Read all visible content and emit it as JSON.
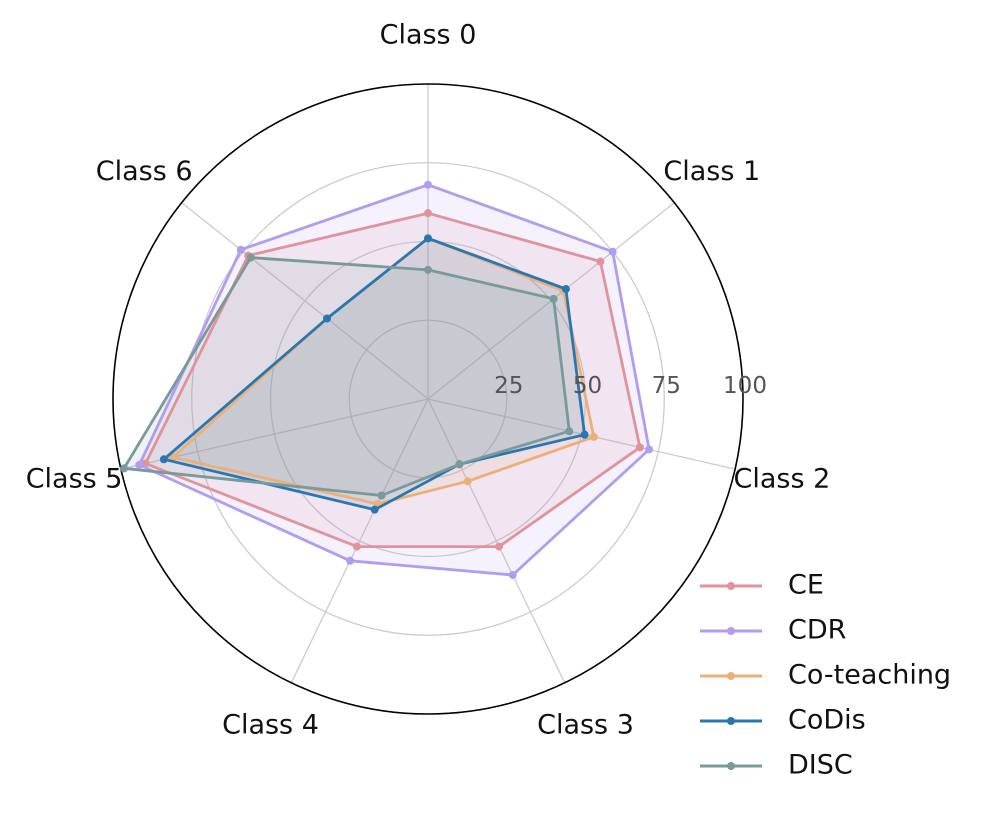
{
  "chart_data": {
    "type": "radar",
    "categories": [
      "Class 0",
      "Class 1",
      "Class 2",
      "Class 3",
      "Class 4",
      "Class 5",
      "Class 6"
    ],
    "rlim": [
      0,
      100
    ],
    "rticks": [
      25,
      50,
      75,
      100
    ],
    "rtick_labels": [
      "25",
      "50",
      "75",
      "100"
    ],
    "grid": true,
    "legend_position": "bottom-right",
    "series": [
      {
        "name": "CE",
        "color": "#e0939a",
        "values": [
          59,
          70,
          69,
          52,
          52,
          92,
          73
        ]
      },
      {
        "name": "CDR",
        "color": "#b09df0",
        "values": [
          68,
          75,
          72,
          62,
          57,
          94,
          76
        ]
      },
      {
        "name": "Co-teaching",
        "color": "#ebb07a",
        "values": [
          51,
          55,
          54,
          29,
          37,
          83,
          41
        ]
      },
      {
        "name": "CoDis",
        "color": "#2a77b0",
        "values": [
          51,
          56,
          51,
          23,
          39,
          86,
          41
        ]
      },
      {
        "name": "DISC",
        "color": "#789a9a",
        "values": [
          41,
          51,
          46,
          23,
          34,
          99,
          72
        ]
      }
    ]
  }
}
